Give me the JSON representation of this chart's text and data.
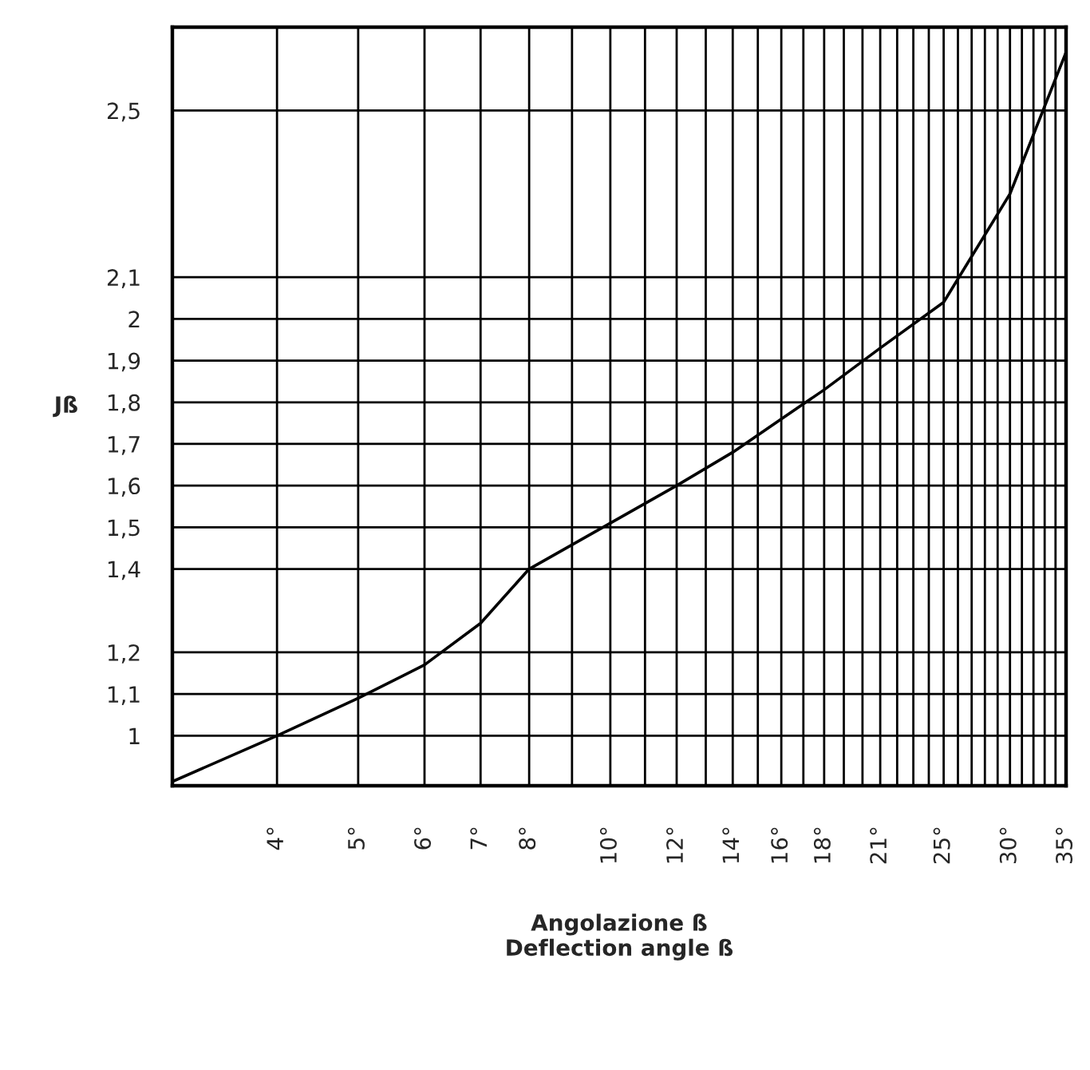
{
  "chart_data": {
    "type": "line",
    "xlabel": "Angolazione ß\nDeflection angle ß",
    "ylabel": "Jß",
    "x": [
      3,
      4,
      5,
      6,
      7,
      8,
      10,
      12,
      14,
      16,
      18,
      21,
      25,
      30,
      35
    ],
    "series": [
      {
        "color": "#000000",
        "values": [
          0.89,
          1.0,
          1.09,
          1.17,
          1.27,
          1.4,
          1.51,
          1.6,
          1.68,
          1.76,
          1.83,
          1.93,
          2.04,
          2.3,
          2.64
        ]
      }
    ],
    "log": "x",
    "xlim": [
      3,
      35
    ],
    "ylim": [
      0.88,
      2.7
    ],
    "xticks": [
      {
        "value": 4,
        "label": "4°"
      },
      {
        "value": 5,
        "label": "5°"
      },
      {
        "value": 6,
        "label": "6°"
      },
      {
        "value": 7,
        "label": "7°"
      },
      {
        "value": 8,
        "label": "8°"
      },
      {
        "value": 9,
        "label": null
      },
      {
        "value": 10,
        "label": "10°"
      },
      {
        "value": 11,
        "label": null
      },
      {
        "value": 12,
        "label": "12°"
      },
      {
        "value": 13,
        "label": null
      },
      {
        "value": 14,
        "label": "14°"
      },
      {
        "value": 15,
        "label": null
      },
      {
        "value": 16,
        "label": "16°"
      },
      {
        "value": 17,
        "label": null
      },
      {
        "value": 18,
        "label": "18°"
      },
      {
        "value": 19,
        "label": null
      },
      {
        "value": 20,
        "label": null
      },
      {
        "value": 21,
        "label": "21°"
      },
      {
        "value": 22,
        "label": null
      },
      {
        "value": 23,
        "label": null
      },
      {
        "value": 24,
        "label": null
      },
      {
        "value": 25,
        "label": "25°"
      },
      {
        "value": 26,
        "label": null
      },
      {
        "value": 27,
        "label": null
      },
      {
        "value": 28,
        "label": null
      },
      {
        "value": 29,
        "label": null
      },
      {
        "value": 30,
        "label": "30°"
      },
      {
        "value": 31,
        "label": null
      },
      {
        "value": 32,
        "label": null
      },
      {
        "value": 33,
        "label": null
      },
      {
        "value": 34,
        "label": null
      },
      {
        "value": 35,
        "label": "35°"
      }
    ],
    "yticks": [
      1,
      {
        "value": 1.1,
        "label": "1,1"
      },
      {
        "value": 1.2,
        "label": "1,2"
      },
      {
        "value": 1.4,
        "label": "1,4"
      },
      {
        "value": 1.5,
        "label": "1,5"
      },
      {
        "value": 1.6,
        "label": "1,6"
      },
      {
        "value": 1.7,
        "label": "1,7"
      },
      {
        "value": 1.8,
        "label": "1,8"
      },
      {
        "value": 1.9,
        "label": "1,9"
      },
      2,
      {
        "value": 2.1,
        "label": "2,1"
      },
      {
        "value": 2.5,
        "label": "2,5"
      }
    ],
    "grid": true,
    "line_style": "solid",
    "marker": "none",
    "legend": false
  }
}
